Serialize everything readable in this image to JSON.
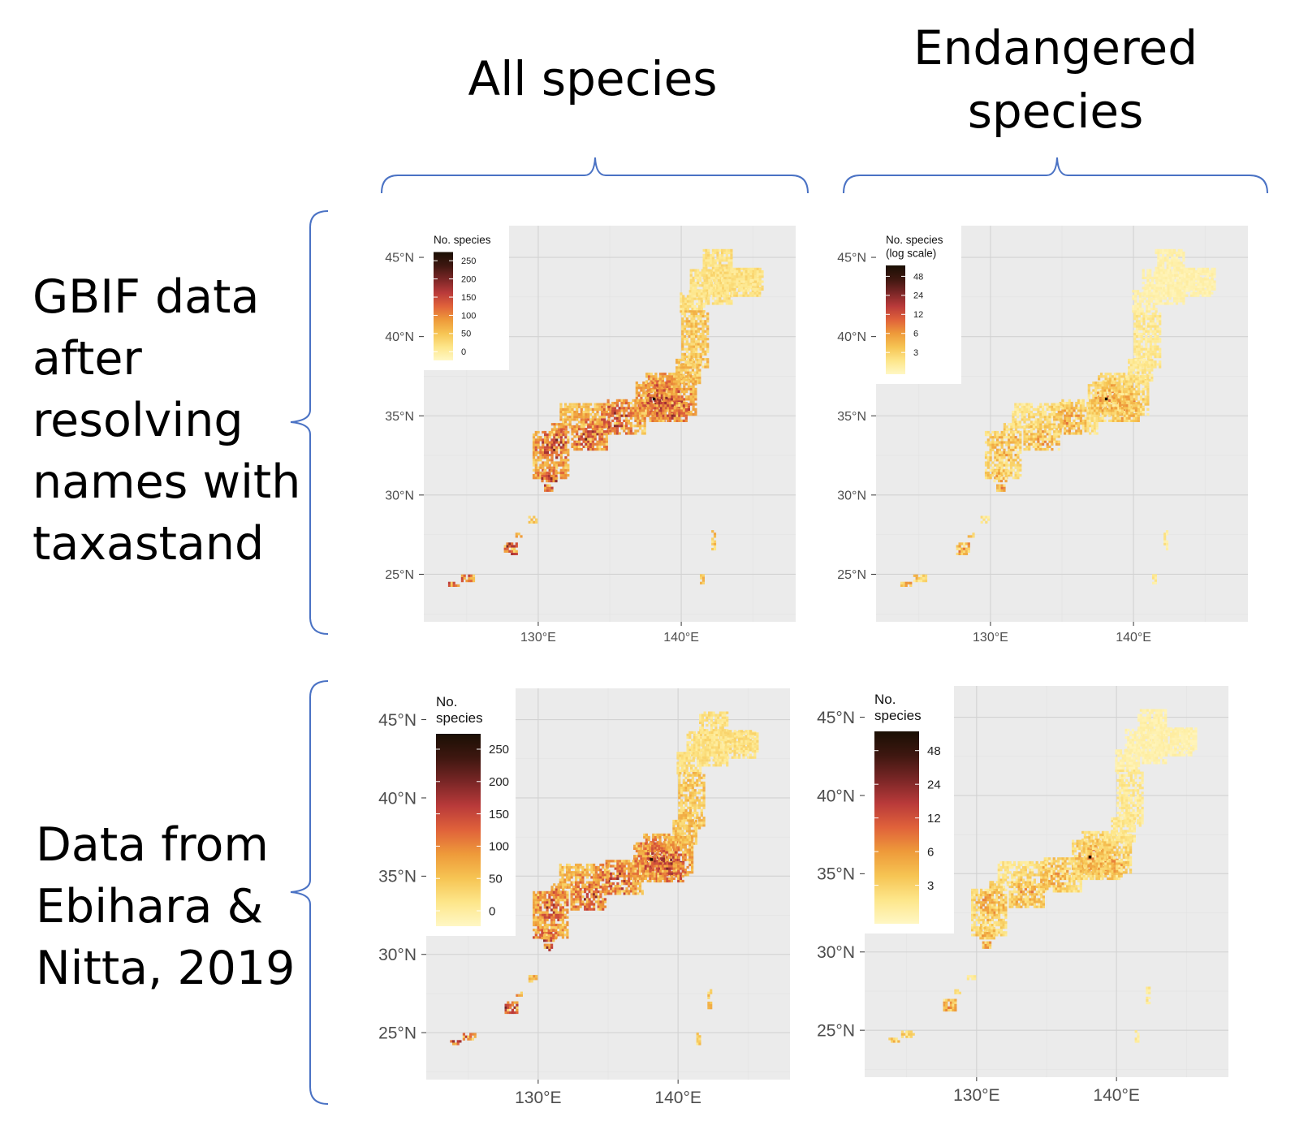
{
  "column_titles": [
    "All species",
    "Endangered\nspecies"
  ],
  "row_titles": [
    "GBIF data\nafter\nresolving\nnames with\ntaxastand",
    "Data from\nEbihara &\nNitta, 2019"
  ],
  "colors": {
    "panel_bg": "#ebebeb",
    "grid": "#d2d2d2",
    "brace": "#4a72c4",
    "scale": [
      "#fff7c4",
      "#fde68a",
      "#f6c453",
      "#ee9a3a",
      "#e0623a",
      "#b93a3a",
      "#7a2626",
      "#3e1710",
      "#1a0f04"
    ]
  },
  "maps": [
    {
      "legend": {
        "title": "No. species",
        "ticks": [
          "250",
          "200",
          "150",
          "100",
          "50",
          "0"
        ]
      },
      "axes": {
        "y_ticks": [
          "45°N",
          "40°N",
          "35°N",
          "30°N",
          "25°N"
        ],
        "x_ticks": [
          "130°E",
          "140°E"
        ]
      },
      "chart_data": {
        "type": "heatmap",
        "variable": "No. species",
        "color_range": [
          0,
          250
        ],
        "lon_range": [
          122,
          148
        ],
        "lat_range": [
          22,
          47
        ]
      }
    },
    {
      "legend": {
        "title": "No. species\n(log scale)",
        "ticks": [
          "48",
          "24",
          "12",
          "6",
          "3"
        ]
      },
      "axes": {
        "y_ticks": [
          "45°N",
          "40°N",
          "35°N",
          "30°N",
          "25°N"
        ],
        "x_ticks": [
          "130°E",
          "140°E"
        ]
      },
      "chart_data": {
        "type": "heatmap",
        "variable": "No. species",
        "scale": "log",
        "color_ticks": [
          3,
          6,
          12,
          24,
          48
        ],
        "lon_range": [
          122,
          148
        ],
        "lat_range": [
          22,
          47
        ]
      }
    },
    {
      "legend": {
        "title": "No.\nspecies",
        "ticks": [
          "250",
          "200",
          "150",
          "100",
          "50",
          "0"
        ]
      },
      "axes": {
        "y_ticks": [
          "45°N",
          "40°N",
          "35°N",
          "30°N",
          "25°N"
        ],
        "x_ticks": [
          "130°E",
          "140°E"
        ]
      },
      "chart_data": {
        "type": "heatmap",
        "variable": "No. species",
        "color_range": [
          0,
          250
        ],
        "lon_range": [
          122,
          148
        ],
        "lat_range": [
          22,
          47
        ]
      }
    },
    {
      "legend": {
        "title": "No.\nspecies",
        "ticks": [
          "48",
          "24",
          "12",
          "6",
          "3"
        ]
      },
      "axes": {
        "y_ticks": [
          "45°N",
          "40°N",
          "35°N",
          "30°N",
          "25°N"
        ],
        "x_ticks": [
          "130°E",
          "140°E"
        ]
      },
      "chart_data": {
        "type": "heatmap",
        "variable": "No. species",
        "scale": "log",
        "color_ticks": [
          3,
          6,
          12,
          24,
          48
        ],
        "lon_range": [
          122,
          148
        ],
        "lat_range": [
          22,
          47
        ]
      }
    }
  ]
}
